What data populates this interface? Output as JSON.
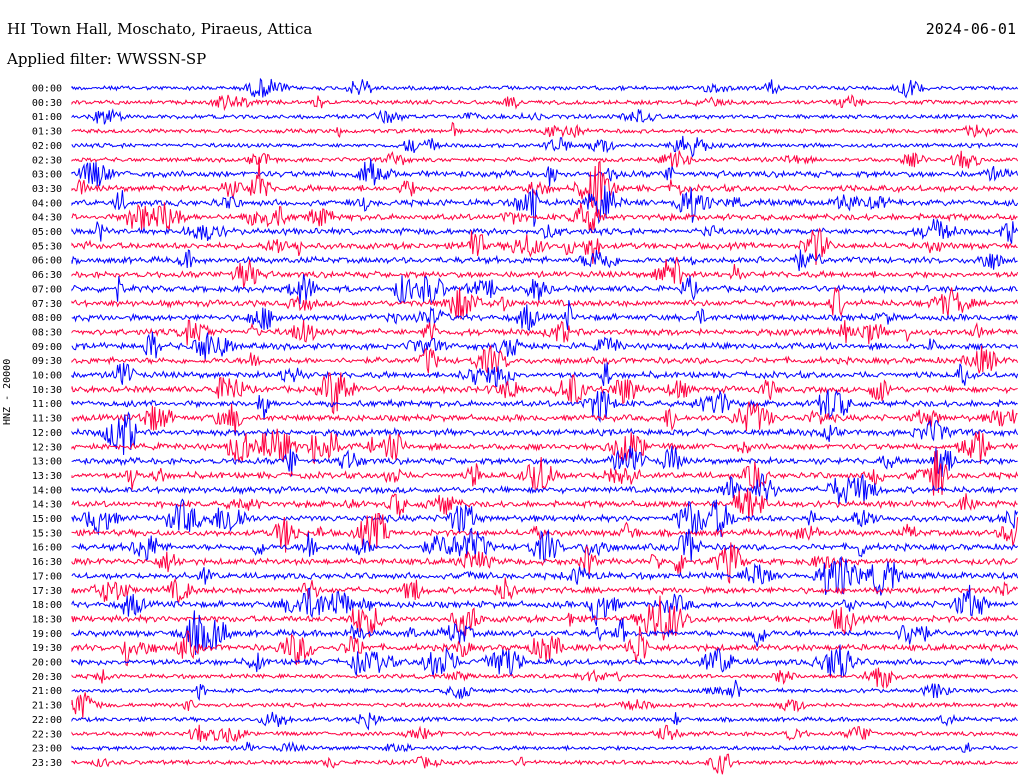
{
  "header": {
    "station": "HI Town Hall, Moschato, Piraeus, Attica",
    "filter": "Applied filter: WWSSN-SP",
    "date": "2024-06-01"
  },
  "chart_data": {
    "type": "line",
    "ylabel": "HNZ - 20000",
    "rows": [
      "00:00",
      "00:30",
      "01:00",
      "01:30",
      "02:00",
      "02:30",
      "03:00",
      "03:30",
      "04:00",
      "04:30",
      "05:00",
      "05:30",
      "06:00",
      "06:30",
      "07:00",
      "07:30",
      "08:00",
      "08:30",
      "09:00",
      "09:30",
      "10:00",
      "10:30",
      "11:00",
      "11:30",
      "12:00",
      "12:30",
      "13:00",
      "13:30",
      "14:00",
      "14:30",
      "15:00",
      "15:30",
      "16:00",
      "16:30",
      "17:00",
      "17:30",
      "18:00",
      "18:30",
      "19:00",
      "19:30",
      "20:00",
      "20:30",
      "21:00",
      "21:30",
      "22:00",
      "22:30",
      "23:00",
      "23:30"
    ],
    "series_colors": [
      "#0000ff",
      "#ff0040"
    ],
    "color_order": "alternating"
  }
}
